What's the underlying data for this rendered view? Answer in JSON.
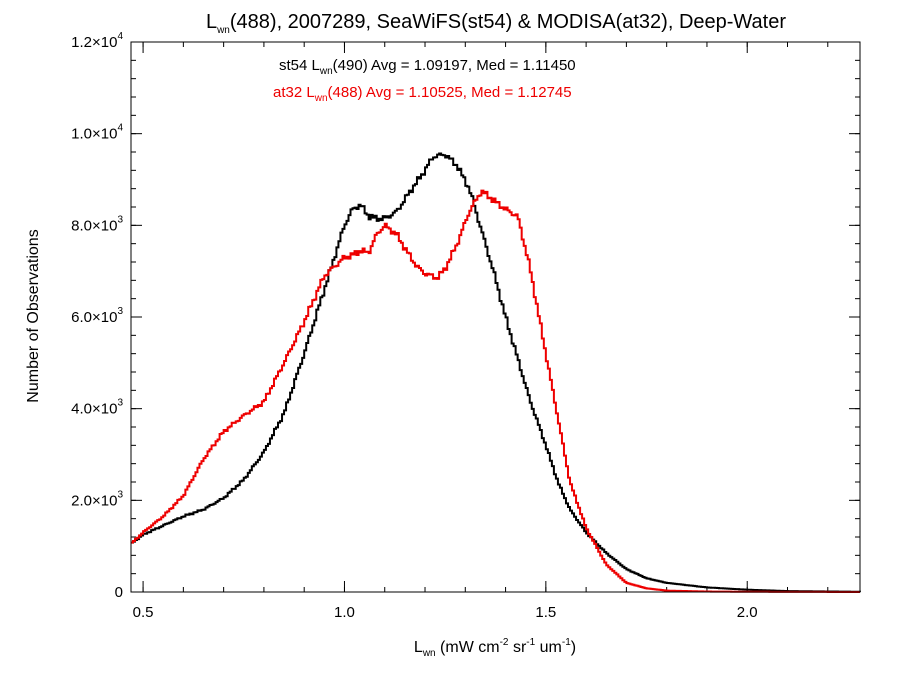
{
  "chart_data": {
    "type": "line",
    "title": {
      "prefix": "L",
      "sub": "wn",
      "rest": "(488), 2007289, SeaWiFS(st54) & MODISA(at32), Deep-Water"
    },
    "xlabel": {
      "prefix": "L",
      "sub": "wn",
      "parts": [
        " (mW cm",
        "-2",
        " sr",
        "-1",
        " um",
        "-1",
        ")"
      ]
    },
    "ylabel": "Number of Observations",
    "xlim": [
      0.47,
      2.28
    ],
    "ylim": [
      0,
      12000
    ],
    "x_ticks": [
      {
        "value": 0.5,
        "label": "0.5"
      },
      {
        "value": 1.0,
        "label": "1.0"
      },
      {
        "value": 1.5,
        "label": "1.5"
      },
      {
        "value": 2.0,
        "label": "2.0"
      }
    ],
    "y_ticks": [
      {
        "value": 0,
        "label": "0",
        "exp": ""
      },
      {
        "value": 2000,
        "label": "2.0×10",
        "exp": "3"
      },
      {
        "value": 4000,
        "label": "4.0×10",
        "exp": "3"
      },
      {
        "value": 6000,
        "label": "6.0×10",
        "exp": "3"
      },
      {
        "value": 8000,
        "label": "8.0×10",
        "exp": "3"
      },
      {
        "value": 10000,
        "label": "1.0×10",
        "exp": "4"
      },
      {
        "value": 12000,
        "label": "1.2×10",
        "exp": "4"
      }
    ],
    "legend_placement": "top-center",
    "grid": false,
    "series": [
      {
        "name": "st54",
        "legend": {
          "prefix": "st54 L",
          "sub": "wn",
          "rest": "(490) Avg = 1.09197, Med = 1.11450"
        },
        "color": "#000000",
        "points": [
          [
            0.47,
            1050
          ],
          [
            0.5,
            1250
          ],
          [
            0.55,
            1450
          ],
          [
            0.6,
            1650
          ],
          [
            0.65,
            1800
          ],
          [
            0.7,
            2050
          ],
          [
            0.75,
            2450
          ],
          [
            0.8,
            3050
          ],
          [
            0.85,
            3900
          ],
          [
            0.9,
            5200
          ],
          [
            0.95,
            6600
          ],
          [
            1.0,
            8000
          ],
          [
            1.02,
            8350
          ],
          [
            1.04,
            8450
          ],
          [
            1.06,
            8200
          ],
          [
            1.08,
            8150
          ],
          [
            1.1,
            8150
          ],
          [
            1.13,
            8300
          ],
          [
            1.16,
            8700
          ],
          [
            1.2,
            9200
          ],
          [
            1.22,
            9500
          ],
          [
            1.25,
            9550
          ],
          [
            1.28,
            9300
          ],
          [
            1.31,
            8800
          ],
          [
            1.34,
            7900
          ],
          [
            1.37,
            7000
          ],
          [
            1.4,
            6000
          ],
          [
            1.43,
            5100
          ],
          [
            1.46,
            4200
          ],
          [
            1.5,
            3200
          ],
          [
            1.53,
            2400
          ],
          [
            1.56,
            1800
          ],
          [
            1.6,
            1300
          ],
          [
            1.65,
            850
          ],
          [
            1.7,
            500
          ],
          [
            1.75,
            300
          ],
          [
            1.8,
            200
          ],
          [
            1.9,
            100
          ],
          [
            2.0,
            50
          ],
          [
            2.1,
            20
          ],
          [
            2.28,
            5
          ]
        ]
      },
      {
        "name": "at32",
        "legend": {
          "prefix": "at32 L",
          "sub": "wn",
          "rest": "(488) Avg = 1.10525, Med = 1.12745"
        },
        "color": "#ee0000",
        "points": [
          [
            0.47,
            1050
          ],
          [
            0.5,
            1300
          ],
          [
            0.55,
            1650
          ],
          [
            0.6,
            2100
          ],
          [
            0.65,
            2900
          ],
          [
            0.7,
            3500
          ],
          [
            0.75,
            3850
          ],
          [
            0.8,
            4150
          ],
          [
            0.85,
            5000
          ],
          [
            0.9,
            5900
          ],
          [
            0.95,
            6900
          ],
          [
            1.0,
            7300
          ],
          [
            1.02,
            7350
          ],
          [
            1.04,
            7450
          ],
          [
            1.06,
            7400
          ],
          [
            1.08,
            7800
          ],
          [
            1.1,
            8000
          ],
          [
            1.13,
            7800
          ],
          [
            1.15,
            7500
          ],
          [
            1.18,
            7100
          ],
          [
            1.2,
            6950
          ],
          [
            1.23,
            6850
          ],
          [
            1.25,
            7050
          ],
          [
            1.28,
            7600
          ],
          [
            1.31,
            8300
          ],
          [
            1.34,
            8750
          ],
          [
            1.37,
            8550
          ],
          [
            1.4,
            8350
          ],
          [
            1.43,
            8200
          ],
          [
            1.46,
            7100
          ],
          [
            1.5,
            5200
          ],
          [
            1.53,
            3800
          ],
          [
            1.56,
            2400
          ],
          [
            1.6,
            1400
          ],
          [
            1.65,
            600
          ],
          [
            1.7,
            200
          ],
          [
            1.75,
            80
          ],
          [
            1.8,
            30
          ],
          [
            1.9,
            10
          ],
          [
            2.0,
            5
          ],
          [
            2.28,
            0
          ]
        ]
      }
    ]
  }
}
